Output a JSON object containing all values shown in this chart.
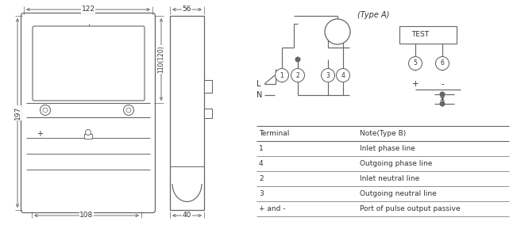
{
  "bg_color": "#ffffff",
  "line_color": "#666666",
  "text_color": "#333333",
  "table_headers": [
    "Terminal",
    "Note(Type B)"
  ],
  "table_rows": [
    [
      "1",
      "Inlet phase line"
    ],
    [
      "4",
      "Outgoing phase line"
    ],
    [
      "2",
      "Inlet neutral line"
    ],
    [
      "3",
      "Outgoing neutral line"
    ],
    [
      "+ and -",
      "Port of pulse output passive"
    ]
  ],
  "type_a_label": "(Type A)",
  "dim_122": "122",
  "dim_108": "108",
  "dim_197": "197",
  "dim_110": "110(120)",
  "dim_56": "56",
  "dim_40": "40"
}
